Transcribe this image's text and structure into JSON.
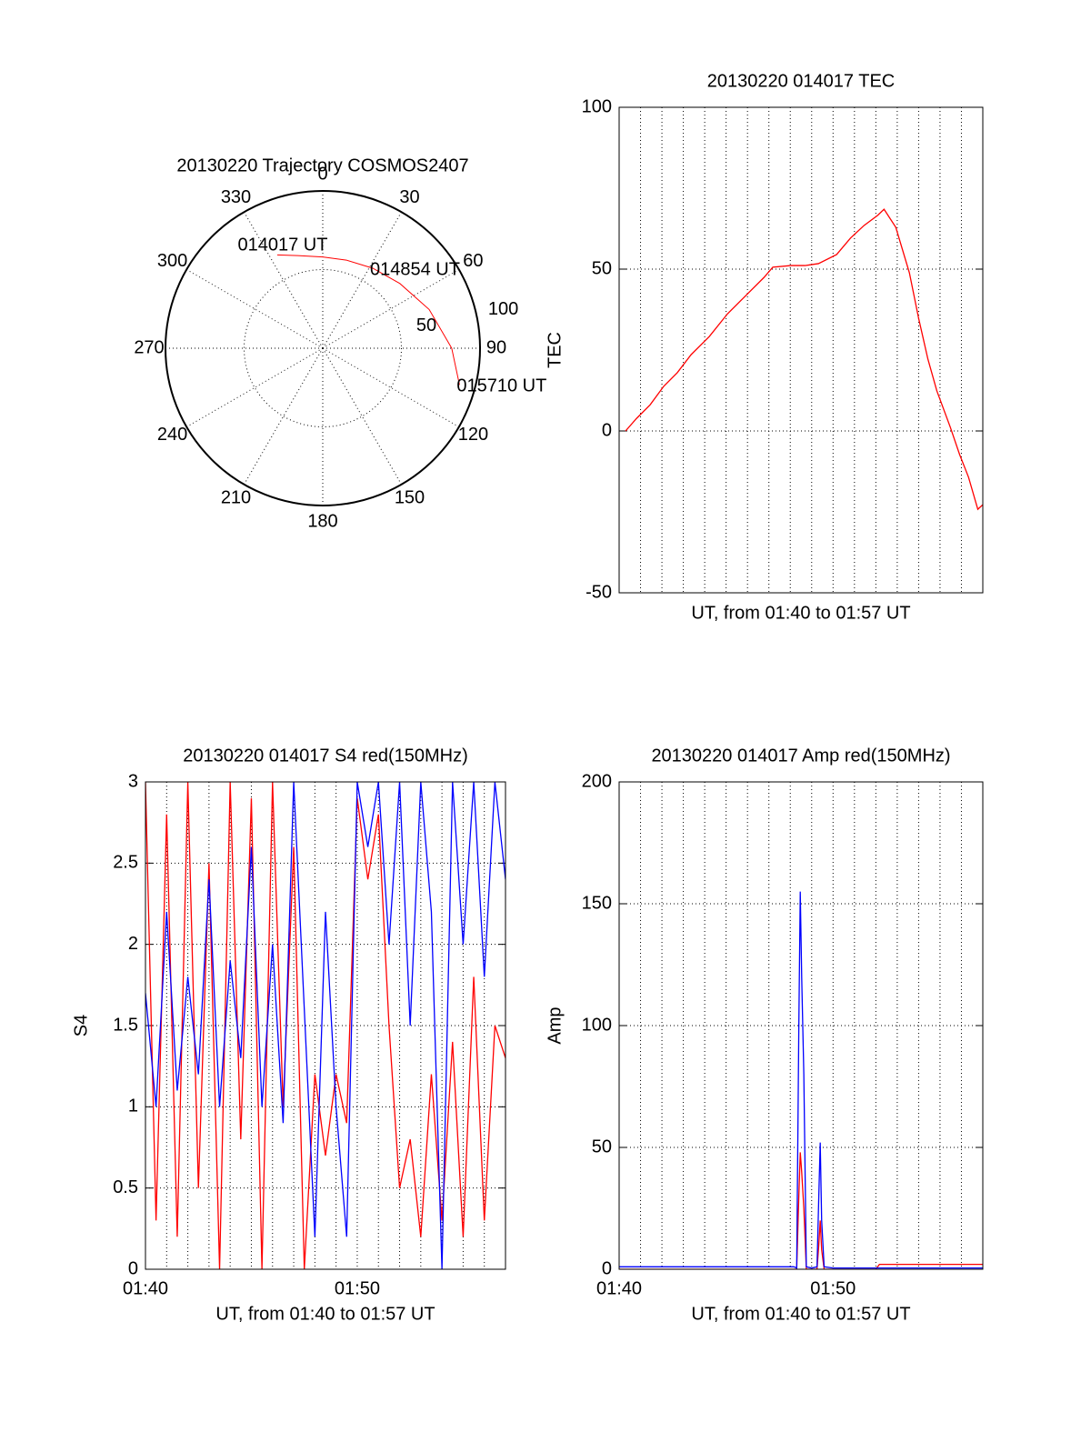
{
  "chart_data": [
    {
      "type": "polar",
      "title": "20130220 Trajectory COSMOS2407",
      "theta": [
        334,
        345,
        0,
        15,
        32,
        50,
        70,
        90,
        105
      ],
      "r": [
        66,
        61,
        58,
        58,
        60,
        64,
        72,
        82,
        90
      ],
      "point_labels": [
        "014017 UT",
        null,
        null,
        null,
        "014854 UT",
        null,
        null,
        null,
        "015710 UT"
      ],
      "color": "#ff0000",
      "rlim": [
        0,
        100
      ],
      "rticks": [
        50,
        100
      ],
      "thetaticks": [
        0,
        30,
        60,
        90,
        120,
        150,
        180,
        210,
        240,
        270,
        300,
        330
      ]
    },
    {
      "type": "line",
      "title": "20130220 014017 TEC",
      "y_label": "TEC",
      "x_label": "UT, from 01:40 to 01:57 UT",
      "xlim": [
        "01:40",
        "01:57"
      ],
      "xticks": [],
      "xgrid": [
        "01:41",
        "01:42",
        "01:43",
        "01:44",
        "01:45",
        "01:46",
        "01:47",
        "01:48",
        "01:49",
        "01:50",
        "01:51",
        "01:52",
        "01:53",
        "01:54",
        "01:55",
        "01:56"
      ],
      "ylim": [
        -50,
        100
      ],
      "yticks": [
        -50,
        0,
        50,
        100
      ],
      "grid": true,
      "x": [
        "01:40:18",
        "01:40:49",
        "01:41:27",
        "01:42:05",
        "01:42:43",
        "01:43:22",
        "01:44:13",
        "01:45:04",
        "01:45:55",
        "01:46:46",
        "01:47:11",
        "01:48:02",
        "01:48:41",
        "01:49:19",
        "01:50:10",
        "01:50:49",
        "01:51:27",
        "01:52:05",
        "01:52:23",
        "01:52:56",
        "01:53:34",
        "01:54:00",
        "01:54:26",
        "01:54:51",
        "01:55:29",
        "01:55:55",
        "01:56:20",
        "01:56:46",
        "01:57:00"
      ],
      "series": [
        {
          "color": "#ff0000",
          "values": [
            0,
            3.9,
            8.1,
            13.8,
            18,
            23.6,
            29.2,
            36.2,
            41.8,
            47.4,
            50.6,
            51.1,
            51.1,
            51.7,
            54.5,
            59.6,
            63.5,
            66.6,
            68.5,
            62.9,
            48.9,
            34.8,
            22.2,
            12.4,
            1.1,
            -7.3,
            -14.3,
            -24.2,
            -22.8
          ]
        }
      ]
    },
    {
      "type": "line",
      "title": "20130220 014017 S4 red(150MHz)",
      "y_label": "S4",
      "x_label": "UT, from 01:40 to 01:57 UT",
      "xlim": [
        "01:40",
        "01:57"
      ],
      "xticks": [
        "01:40",
        "01:50"
      ],
      "xgrid": [
        "01:41",
        "01:42",
        "01:43",
        "01:44",
        "01:45",
        "01:46",
        "01:47",
        "01:48",
        "01:49",
        "01:51",
        "01:52",
        "01:53",
        "01:54",
        "01:55",
        "01:56"
      ],
      "ylim": [
        0,
        3
      ],
      "yticks": [
        0,
        0.5,
        1,
        1.5,
        2,
        2.5,
        3
      ],
      "grid": true,
      "x": [
        "01:40:00",
        "01:40:30",
        "01:41:00",
        "01:41:30",
        "01:42:00",
        "01:42:30",
        "01:43:00",
        "01:43:30",
        "01:44:00",
        "01:44:30",
        "01:45:00",
        "01:45:30",
        "01:46:00",
        "01:46:30",
        "01:47:00",
        "01:47:30",
        "01:48:00",
        "01:48:30",
        "01:49:00",
        "01:49:30",
        "01:50:00",
        "01:50:30",
        "01:51:00",
        "01:51:30",
        "01:52:00",
        "01:52:30",
        "01:53:00",
        "01:53:30",
        "01:54:00",
        "01:54:30",
        "01:55:00",
        "01:55:30",
        "01:56:00",
        "01:56:30",
        "01:57:00"
      ],
      "series": [
        {
          "color": "#ff0000",
          "values": [
            3,
            0.3,
            2.8,
            0.2,
            3,
            0.5,
            2.5,
            0,
            3,
            0.8,
            2.9,
            0,
            3,
            1.0,
            2.6,
            0,
            1.2,
            0.7,
            1.2,
            0.9,
            2.9,
            2.4,
            2.8,
            1.5,
            0.5,
            0.8,
            0.2,
            1.2,
            0.3,
            1.4,
            0.2,
            1.8,
            0.3,
            1.5,
            1.3
          ]
        },
        {
          "color": "#0000ff",
          "values": [
            1.7,
            1.0,
            2.2,
            1.1,
            1.8,
            1.2,
            2.4,
            1.0,
            1.9,
            1.3,
            2.6,
            1.0,
            2.0,
            0.9,
            3.0,
            1.6,
            0.2,
            2.2,
            1.0,
            0.2,
            3.0,
            2.6,
            3.0,
            2.0,
            3.0,
            1.5,
            3.0,
            2.2,
            0,
            3.0,
            2.0,
            3.0,
            1.8,
            3.0,
            2.4
          ]
        }
      ]
    },
    {
      "type": "line",
      "title": "20130220 014017 Amp red(150MHz)",
      "y_label": "Amp",
      "x_label": "UT, from 01:40 to 01:57 UT",
      "xlim": [
        "01:40",
        "01:57"
      ],
      "xticks": [
        "01:40",
        "01:50"
      ],
      "xgrid": [
        "01:41",
        "01:42",
        "01:43",
        "01:44",
        "01:45",
        "01:46",
        "01:47",
        "01:48",
        "01:49",
        "01:51",
        "01:52",
        "01:53",
        "01:54",
        "01:55",
        "01:56"
      ],
      "ylim": [
        0,
        200
      ],
      "yticks": [
        0,
        50,
        100,
        150,
        200
      ],
      "grid": true,
      "x": [
        "01:40:00",
        "01:42:00",
        "01:44:00",
        "01:46:00",
        "01:48:00",
        "01:48:10",
        "01:48:18",
        "01:48:24",
        "01:48:28",
        "01:48:32",
        "01:48:38",
        "01:48:45",
        "01:49:00",
        "01:49:15",
        "01:49:20",
        "01:49:24",
        "01:49:28",
        "01:49:35",
        "01:50:00",
        "01:52:00",
        "01:52:10",
        "01:54:00",
        "01:56:00",
        "01:57:00"
      ],
      "series": [
        {
          "color": "#ff0000",
          "values": [
            0,
            0,
            0,
            0,
            0,
            0,
            0,
            30,
            48,
            40,
            25,
            0,
            0,
            0,
            10,
            20,
            8,
            0,
            0,
            0,
            2,
            2,
            2,
            2
          ]
        },
        {
          "color": "#0000ff",
          "values": [
            1,
            1,
            1,
            1,
            1,
            1,
            0.5,
            100,
            155,
            120,
            80,
            1,
            0.5,
            1,
            30,
            52,
            20,
            1,
            0.5,
            0.5,
            0.5,
            0.5,
            0.5,
            0.5
          ]
        }
      ]
    }
  ]
}
